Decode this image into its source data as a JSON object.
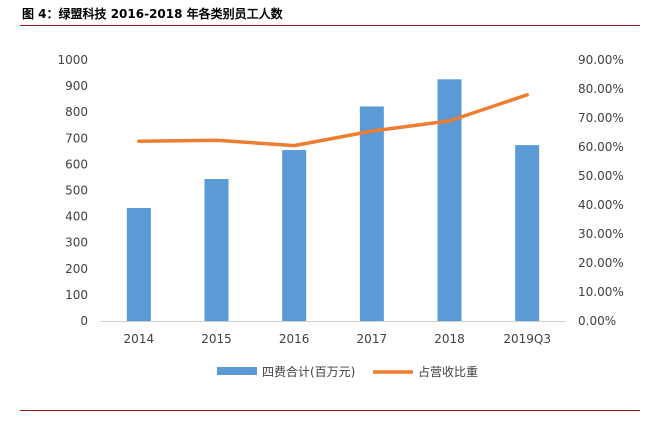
{
  "figure_title": "图 4：绿盟科技 2016-2018 年各类别员工人数",
  "chart_data": {
    "type": "bar",
    "categories": [
      "2014",
      "2015",
      "2016",
      "2017",
      "2018",
      "2019Q3"
    ],
    "series": [
      {
        "name": "四费合计(百万元)",
        "type": "bar",
        "axis": "left",
        "values": [
          433,
          544,
          655,
          822,
          926,
          674
        ],
        "color": "#5B9BD5"
      },
      {
        "name": "占营收比重",
        "type": "line",
        "axis": "right",
        "values": [
          0.62,
          0.623,
          0.605,
          0.655,
          0.69,
          0.78
        ],
        "color": "#ED7D31"
      }
    ],
    "y_left": {
      "ylim": [
        0,
        1000
      ],
      "ticks": [
        "0",
        "100",
        "200",
        "300",
        "400",
        "500",
        "600",
        "700",
        "800",
        "900",
        "1000"
      ]
    },
    "y_right": {
      "ylim": [
        0,
        0.9
      ],
      "ticks": [
        "0.00%",
        "10.00%",
        "20.00%",
        "30.00%",
        "40.00%",
        "50.00%",
        "60.00%",
        "70.00%",
        "80.00%",
        "90.00%"
      ]
    },
    "grid": false,
    "legend_position": "bottom"
  }
}
